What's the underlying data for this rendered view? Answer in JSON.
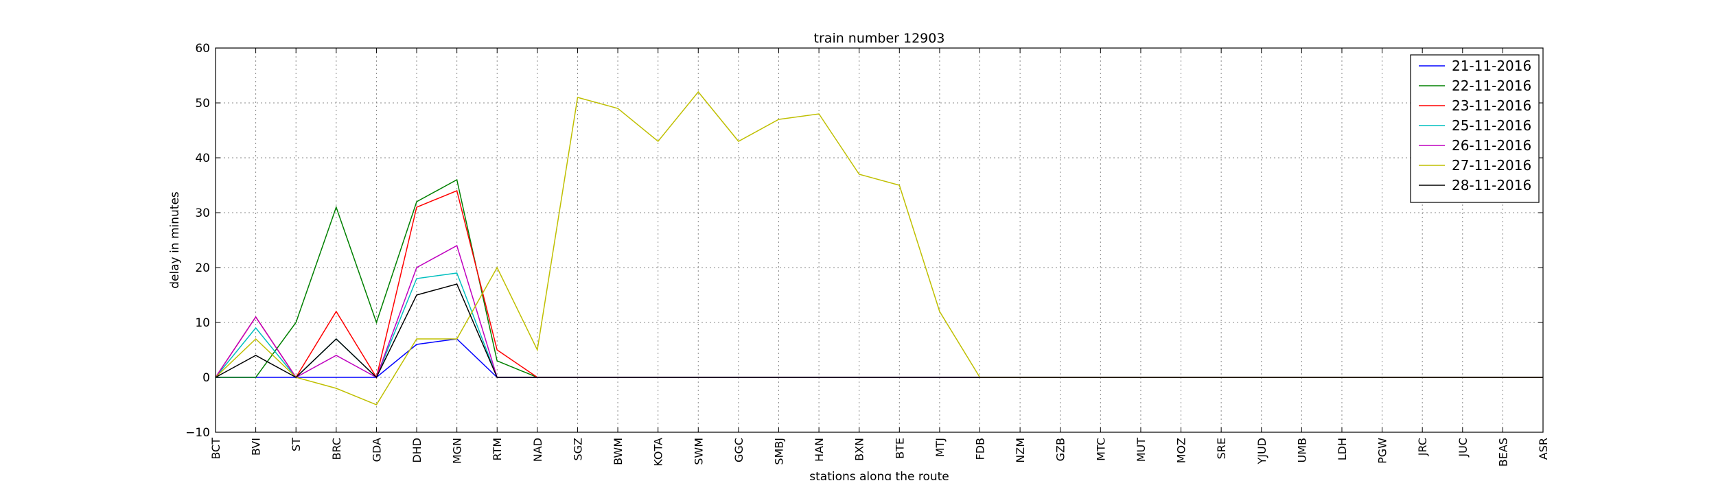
{
  "chart_data": {
    "type": "line",
    "title": "train number 12903",
    "xlabel": "stations along the route",
    "ylabel": "delay in minutes",
    "ylim": [
      -10,
      60
    ],
    "yticks": [
      -10,
      0,
      10,
      20,
      30,
      40,
      50,
      60
    ],
    "grid": true,
    "legend_position": "top-right",
    "categories": [
      "BCT",
      "BVI",
      "ST",
      "BRC",
      "GDA",
      "DHD",
      "MGN",
      "RTM",
      "NAD",
      "SGZ",
      "BWM",
      "KOTA",
      "SWM",
      "GGC",
      "SMBJ",
      "HAN",
      "BXN",
      "BTE",
      "MTJ",
      "FDB",
      "NZM",
      "GZB",
      "MTC",
      "MUT",
      "MOZ",
      "SRE",
      "YJUD",
      "UMB",
      "LDH",
      "PGW",
      "JRC",
      "JUC",
      "BEAS",
      "ASR"
    ],
    "series": [
      {
        "name": "21-11-2016",
        "color": "#0000ff",
        "values": [
          0,
          0,
          0,
          0,
          0,
          6,
          7,
          0,
          0,
          0,
          0,
          0,
          0,
          0,
          0,
          0,
          0,
          0,
          0,
          0,
          0,
          0,
          0,
          0,
          0,
          0,
          0,
          0,
          0,
          0,
          0,
          0,
          0,
          0
        ]
      },
      {
        "name": "22-11-2016",
        "color": "#008000",
        "values": [
          0,
          0,
          10,
          31,
          10,
          32,
          36,
          3,
          0,
          0,
          0,
          0,
          0,
          0,
          0,
          0,
          0,
          0,
          0,
          0,
          0,
          0,
          0,
          0,
          0,
          0,
          0,
          0,
          0,
          0,
          0,
          0,
          0,
          0
        ]
      },
      {
        "name": "23-11-2016",
        "color": "#ff0000",
        "values": [
          0,
          11,
          0,
          12,
          0,
          31,
          34,
          5,
          0,
          0,
          0,
          0,
          0,
          0,
          0,
          0,
          0,
          0,
          0,
          0,
          0,
          0,
          0,
          0,
          0,
          0,
          0,
          0,
          0,
          0,
          0,
          0,
          0,
          0
        ]
      },
      {
        "name": "25-11-2016",
        "color": "#00bfbf",
        "values": [
          0,
          9,
          0,
          7,
          0,
          18,
          19,
          0,
          0,
          0,
          0,
          0,
          0,
          0,
          0,
          0,
          0,
          0,
          0,
          0,
          0,
          0,
          0,
          0,
          0,
          0,
          0,
          0,
          0,
          0,
          0,
          0,
          0,
          0
        ]
      },
      {
        "name": "26-11-2016",
        "color": "#bf00bf",
        "values": [
          0,
          11,
          0,
          4,
          0,
          20,
          24,
          0,
          0,
          0,
          0,
          0,
          0,
          0,
          0,
          0,
          0,
          0,
          0,
          0,
          0,
          0,
          0,
          0,
          0,
          0,
          0,
          0,
          0,
          0,
          0,
          0,
          0,
          0
        ]
      },
      {
        "name": "27-11-2016",
        "color": "#bfbf00",
        "values": [
          0,
          7,
          0,
          -2,
          -5,
          7,
          7,
          20,
          5,
          51,
          49,
          43,
          52,
          43,
          47,
          48,
          37,
          35,
          12,
          0,
          0,
          0,
          0,
          0,
          0,
          0,
          0,
          0,
          0,
          0,
          0,
          0,
          0,
          0
        ]
      },
      {
        "name": "28-11-2016",
        "color": "#000000",
        "values": [
          0,
          4,
          0,
          7,
          0,
          15,
          17,
          0,
          0,
          0,
          0,
          0,
          0,
          0,
          0,
          0,
          0,
          0,
          0,
          0,
          0,
          0,
          0,
          0,
          0,
          0,
          0,
          0,
          0,
          0,
          0,
          0,
          0,
          0
        ]
      }
    ]
  }
}
